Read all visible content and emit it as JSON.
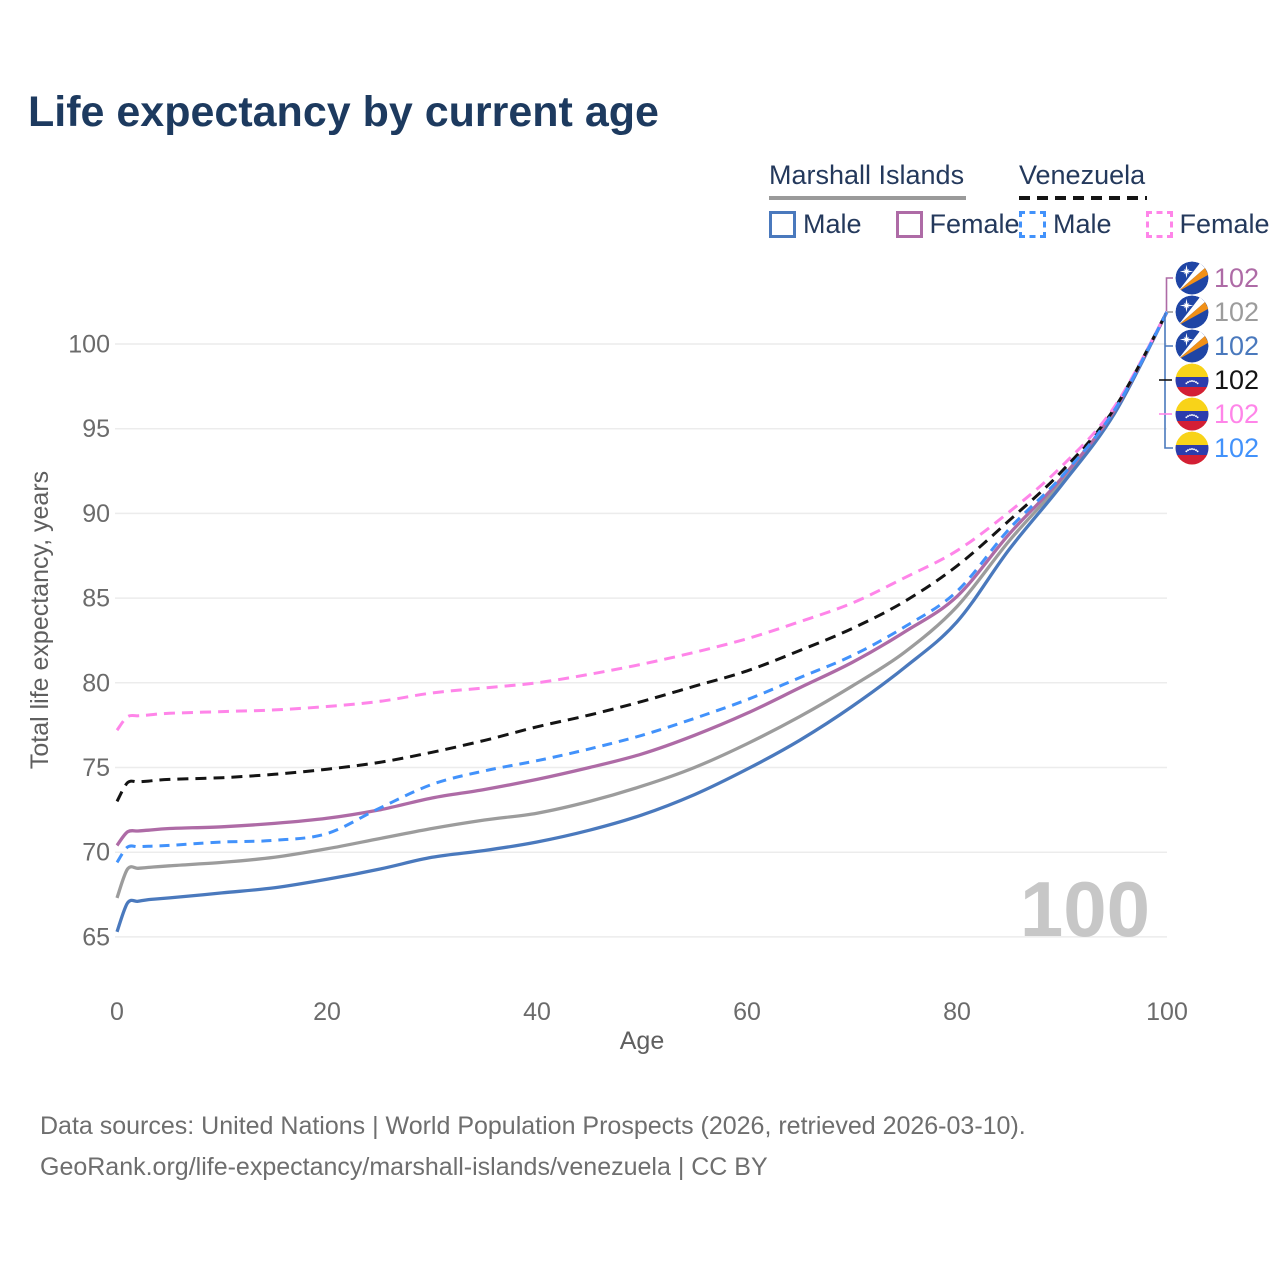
{
  "page": {
    "title": "Life expectancy by current age",
    "footer_line1": "Data sources: United Nations | World Population Prospects (2026, retrieved 2026-03-10).",
    "footer_line2": "GeoRank.org/life-expectancy/marshall-islands/venezuela | CC BY"
  },
  "legend": {
    "groups": [
      {
        "title": "Marshall Islands",
        "line_style": "solid",
        "line_color": "#9a9a9a",
        "items": [
          {
            "label": "Male",
            "color": "#4a79bd",
            "box_style": "solid"
          },
          {
            "label": "Female",
            "color": "#ae6ba6",
            "box_style": "solid"
          }
        ]
      },
      {
        "title": "Venezuela",
        "line_style": "dashed",
        "line_color": "#141414",
        "items": [
          {
            "label": "Male",
            "color": "#4292fb",
            "box_style": "dashed"
          },
          {
            "label": "Female",
            "color": "#ff85e9",
            "box_style": "dashed"
          }
        ]
      }
    ]
  },
  "chart_data": {
    "type": "line",
    "title": "Life expectancy by current age",
    "xlabel": "Age",
    "ylabel": "Total life expectancy, years",
    "xlim": [
      0,
      100
    ],
    "ylim": [
      63.5,
      103.5
    ],
    "x_ticks": [
      0,
      20,
      40,
      60,
      80,
      100
    ],
    "y_ticks": [
      65,
      70,
      75,
      80,
      85,
      90,
      95,
      100
    ],
    "grid": "horizontal-only",
    "watermark": "100",
    "x": [
      0,
      1,
      2,
      3,
      5,
      10,
      15,
      20,
      25,
      30,
      35,
      40,
      45,
      50,
      55,
      60,
      65,
      70,
      75,
      80,
      85,
      90,
      95,
      100
    ],
    "series": [
      {
        "name": "Marshall Islands — Male",
        "country": "Marshall Islands",
        "sex": "Male",
        "style": "solid",
        "color": "#4a79bd",
        "values": [
          65.3,
          67.0,
          67.1,
          67.2,
          67.3,
          67.6,
          67.9,
          68.4,
          69.0,
          69.7,
          70.1,
          70.6,
          71.3,
          72.2,
          73.4,
          74.9,
          76.6,
          78.6,
          80.9,
          83.6,
          87.9,
          91.7,
          95.9,
          101.9
        ]
      },
      {
        "name": "Marshall Islands — Both sexes",
        "country": "Marshall Islands",
        "sex": "Both",
        "style": "solid",
        "color": "#9c9c9c",
        "values": [
          67.3,
          69.0,
          69.05,
          69.1,
          69.2,
          69.4,
          69.7,
          70.2,
          70.8,
          71.4,
          71.9,
          72.3,
          73.0,
          73.9,
          75.0,
          76.4,
          78.0,
          79.8,
          81.8,
          84.5,
          88.4,
          91.9,
          96.0,
          101.9
        ]
      },
      {
        "name": "Marshall Islands — Female",
        "country": "Marshall Islands",
        "sex": "Female",
        "style": "solid",
        "color": "#ae6ba6",
        "values": [
          70.4,
          71.2,
          71.25,
          71.3,
          71.4,
          71.5,
          71.7,
          72.0,
          72.5,
          73.2,
          73.7,
          74.3,
          75.0,
          75.8,
          76.9,
          78.2,
          79.7,
          81.2,
          83.0,
          85.1,
          88.8,
          92.1,
          96.1,
          101.9
        ]
      },
      {
        "name": "Venezuela — Male",
        "country": "Venezuela",
        "sex": "Male",
        "style": "dashed",
        "color": "#4292fb",
        "values": [
          69.4,
          70.3,
          70.32,
          70.35,
          70.4,
          70.6,
          70.7,
          71.1,
          72.6,
          74.0,
          74.8,
          75.4,
          76.1,
          76.9,
          77.9,
          79.0,
          80.3,
          81.6,
          83.3,
          85.4,
          89.1,
          92.2,
          96.1,
          101.9
        ]
      },
      {
        "name": "Venezuela — Both sexes",
        "country": "Venezuela",
        "sex": "Both",
        "style": "dashed",
        "color": "#141414",
        "values": [
          73.0,
          74.1,
          74.15,
          74.2,
          74.3,
          74.4,
          74.6,
          74.9,
          75.3,
          75.9,
          76.6,
          77.4,
          78.1,
          78.9,
          79.8,
          80.7,
          81.9,
          83.2,
          84.8,
          86.9,
          89.6,
          92.5,
          96.2,
          101.9
        ]
      },
      {
        "name": "Venezuela — Female",
        "country": "Venezuela",
        "sex": "Female",
        "style": "dashed",
        "color": "#ff85e9",
        "values": [
          77.2,
          78.0,
          78.05,
          78.1,
          78.2,
          78.3,
          78.4,
          78.6,
          78.9,
          79.4,
          79.7,
          80.0,
          80.5,
          81.1,
          81.8,
          82.6,
          83.6,
          84.7,
          86.2,
          87.8,
          90.1,
          92.8,
          96.3,
          101.9
        ]
      }
    ],
    "end_labels": [
      {
        "flag": "marshall-islands",
        "value": "102",
        "color": "#ae6ba6"
      },
      {
        "flag": "marshall-islands",
        "value": "102",
        "color": "#9c9c9c"
      },
      {
        "flag": "marshall-islands",
        "value": "102",
        "color": "#4a79bd"
      },
      {
        "flag": "venezuela",
        "value": "102",
        "color": "#141414"
      },
      {
        "flag": "venezuela",
        "value": "102",
        "color": "#ff85e9"
      },
      {
        "flag": "venezuela",
        "value": "102",
        "color": "#4292fb"
      }
    ]
  }
}
